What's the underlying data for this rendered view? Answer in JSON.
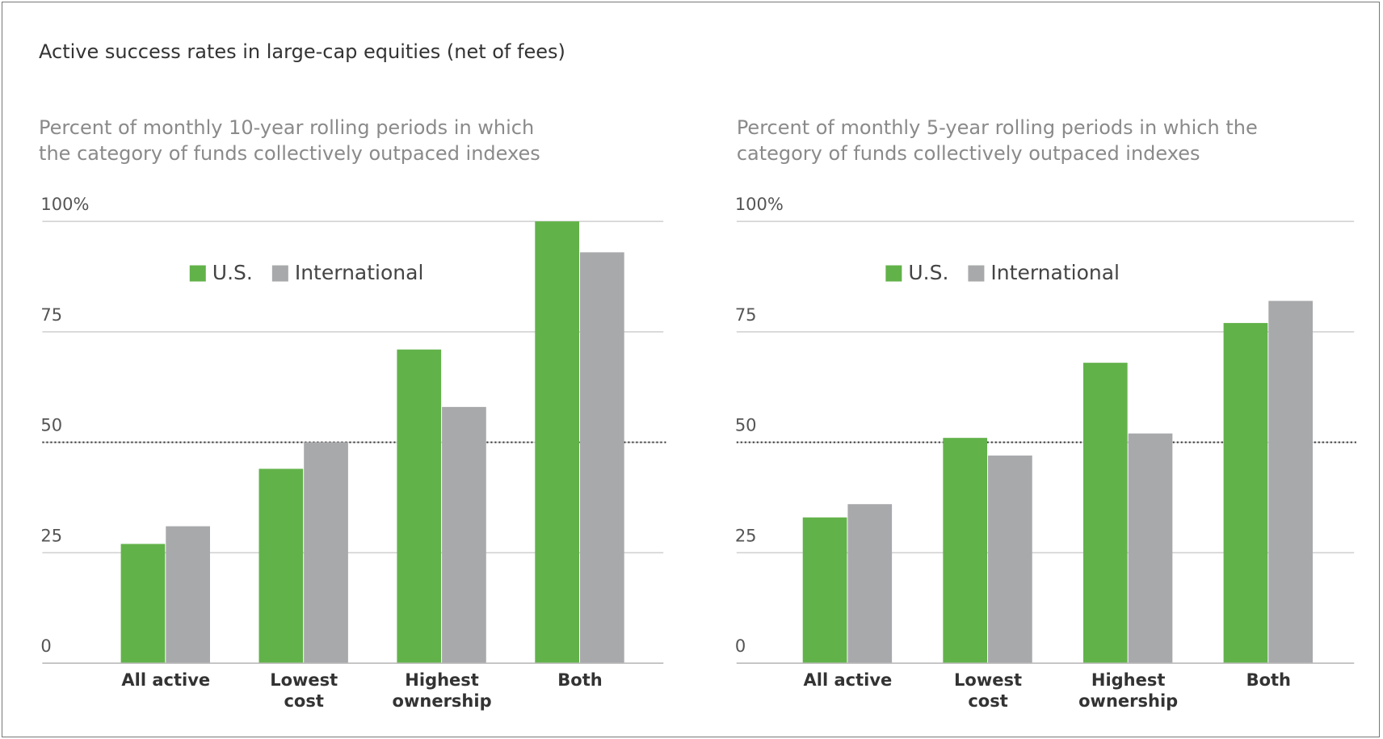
{
  "title": "Active success rates in large-cap equities (net of fees)",
  "chart_data": [
    {
      "type": "bar",
      "subtitle": "Percent of monthly 10-year rolling periods in which\nthe category of funds collectively outpaced indexes",
      "categories": [
        "All active",
        "Lowest\ncost",
        "Highest\nownership",
        "Both"
      ],
      "series": [
        {
          "name": "U.S.",
          "color": "#62b24a",
          "values": [
            27,
            44,
            71,
            100
          ]
        },
        {
          "name": "International",
          "color": "#a8a9ab",
          "values": [
            31,
            50,
            58,
            93
          ]
        }
      ],
      "ylim": [
        0,
        100
      ],
      "yticks": [
        0,
        25,
        50,
        75,
        {
          "value": 100,
          "label": "100%"
        }
      ],
      "reference_line": 50,
      "grid": true
    },
    {
      "type": "bar",
      "subtitle": "Percent of monthly 5-year rolling periods in which the\ncategory of funds collectively outpaced indexes",
      "categories": [
        "All active",
        "Lowest\ncost",
        "Highest\nownership",
        "Both"
      ],
      "series": [
        {
          "name": "U.S.",
          "color": "#62b24a",
          "values": [
            33,
            51,
            68,
            77
          ]
        },
        {
          "name": "International",
          "color": "#a8a9ab",
          "values": [
            36,
            47,
            52,
            82
          ]
        }
      ],
      "ylim": [
        0,
        100
      ],
      "yticks": [
        0,
        25,
        50,
        75,
        {
          "value": 100,
          "label": "100%"
        }
      ],
      "reference_line": 50,
      "grid": true
    }
  ]
}
